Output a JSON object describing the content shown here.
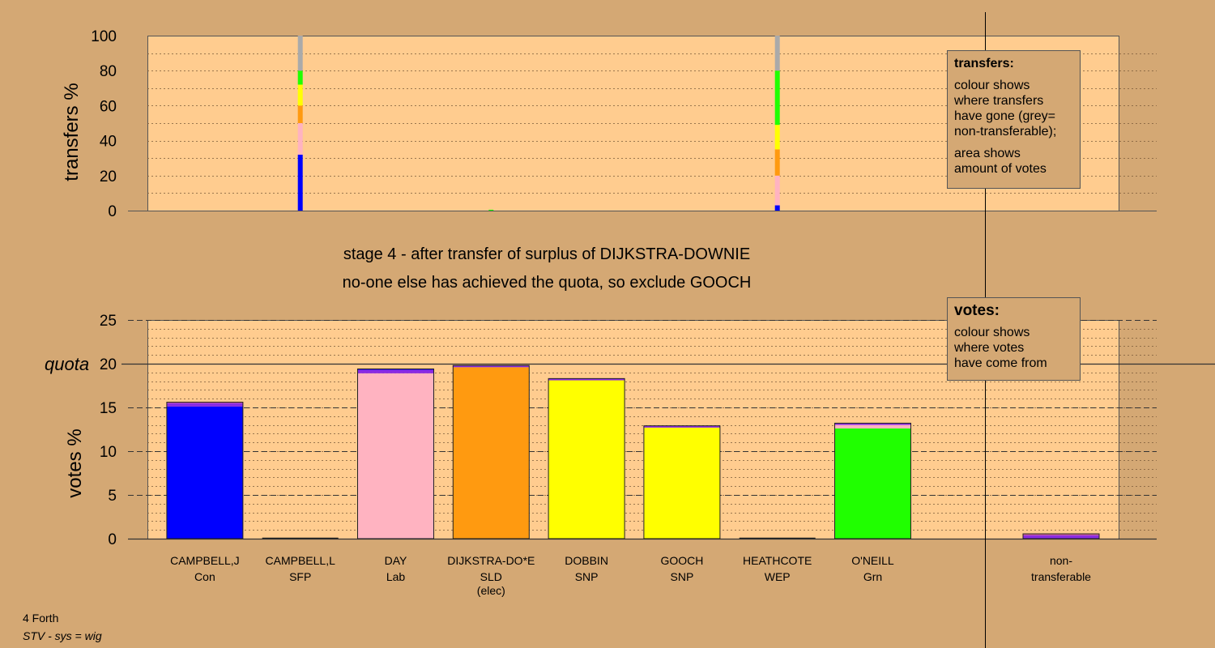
{
  "chart_data": {
    "stage_title": "stage 4 - after transfer of surplus of DIJKSTRA-DOWNIE",
    "stage_subtitle": "no-one else has achieved the quota, so exclude GOOCH",
    "candidates": [
      {
        "name": "CAMPBELL,J",
        "party": "Con",
        "note": ""
      },
      {
        "name": "CAMPBELL,L",
        "party": "SFP",
        "note": ""
      },
      {
        "name": "DAY",
        "party": "Lab",
        "note": ""
      },
      {
        "name": "DIJKSTRA-DO*E",
        "party": "SLD",
        "note": "(elec)"
      },
      {
        "name": "DOBBIN",
        "party": "SNP",
        "note": ""
      },
      {
        "name": "GOOCH",
        "party": "SNP",
        "note": ""
      },
      {
        "name": "HEATHCOTE",
        "party": "WEP",
        "note": ""
      },
      {
        "name": "O'NEILL",
        "party": "Grn",
        "note": ""
      }
    ],
    "nontransferable_label_1": "non-",
    "nontransferable_label_2": "transferable",
    "transfers_chart": {
      "type": "bar",
      "ylabel": "transfers %",
      "ylim": [
        0,
        100
      ],
      "yticks": [
        0,
        20,
        40,
        60,
        80,
        100
      ],
      "bars": [
        {
          "position": 1.5,
          "segments": [
            {
              "color": "#0000ff",
              "value": 32
            },
            {
              "color": "#ffb3c1",
              "value": 18
            },
            {
              "color": "#ff9a10",
              "value": 10
            },
            {
              "color": "#ffff00",
              "value": 12
            },
            {
              "color": "#20ff00",
              "value": 8
            },
            {
              "color": "#aaaaaa",
              "value": 20
            }
          ]
        },
        {
          "position": 3.5,
          "segments": [
            {
              "color": "#20ff00",
              "value": 0.5
            }
          ]
        },
        {
          "position": 6.5,
          "segments": [
            {
              "color": "#0000ff",
              "value": 3
            },
            {
              "color": "#ffb3c1",
              "value": 17
            },
            {
              "color": "#ff9a10",
              "value": 15
            },
            {
              "color": "#ffff00",
              "value": 14
            },
            {
              "color": "#20ff00",
              "value": 31
            },
            {
              "color": "#aaaaaa",
              "value": 20
            }
          ]
        }
      ]
    },
    "votes_chart": {
      "type": "bar",
      "ylabel": "votes %",
      "ylim": [
        0,
        25
      ],
      "yticks": [
        0,
        5,
        10,
        15,
        20,
        25
      ],
      "quota": 20,
      "quota_label": "quota",
      "bars": [
        [
          {
            "color": "#0000ff",
            "value": 15.1
          },
          {
            "color": "#8a2be2",
            "value": 0.4
          },
          {
            "color": "#d4609a",
            "value": 0.1
          }
        ],
        [],
        [
          {
            "color": "#ffb3c1",
            "value": 18.9
          },
          {
            "color": "#8a2be2",
            "value": 0.4
          },
          {
            "color": "#0000ff",
            "value": 0.1
          }
        ],
        [
          {
            "color": "#ff9a10",
            "value": 19.6
          },
          {
            "color": "#8a2be2",
            "value": 0.2
          }
        ],
        [
          {
            "color": "#ffff00",
            "value": 18.1
          },
          {
            "color": "#8a2be2",
            "value": 0.2
          }
        ],
        [
          {
            "color": "#ffff00",
            "value": 12.7
          },
          {
            "color": "#8a2be2",
            "value": 0.2
          }
        ],
        [],
        [
          {
            "color": "#20ff00",
            "value": 12.6
          },
          {
            "color": "#ffb3c1",
            "value": 0.4
          },
          {
            "color": "#8a2be2",
            "value": 0.2
          }
        ]
      ],
      "nontransferable": [
        {
          "color": "#8a2be2",
          "value": 0.4
        },
        {
          "color": "#d4609a",
          "value": 0.15
        }
      ]
    }
  },
  "legend_transfers": {
    "title": "transfers:",
    "line1": "colour shows",
    "line2": "where transfers",
    "line3": "have gone (grey=",
    "line4": "non-transferable);",
    "line5": "area shows",
    "line6": "amount of votes"
  },
  "legend_votes": {
    "title": "votes:",
    "line1": "colour shows",
    "line2": "where votes",
    "line3": "have come from"
  },
  "footer": {
    "ward": "4 Forth",
    "system": "STV - sys = wig"
  },
  "colors": {
    "background": "#d4a874",
    "plot_fill": "#ffcc8f"
  }
}
